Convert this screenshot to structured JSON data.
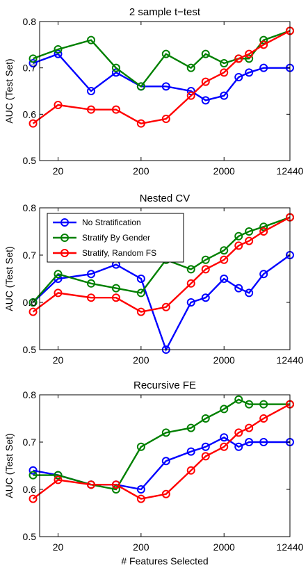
{
  "chart_data": [
    {
      "type": "line",
      "title": "2 sample t−test",
      "ylabel": "AUC (Test Set)",
      "xlabel": "",
      "ylim": [
        0.5,
        0.8
      ],
      "yticks": [
        0.5,
        0.6,
        0.7,
        0.8
      ],
      "xticks": [
        20,
        200,
        2000,
        12440
      ],
      "xscale": "log",
      "legend": null,
      "series": [
        {
          "color": "#0000ff",
          "x": [
            10,
            20,
            50,
            100,
            200,
            400,
            800,
            1200,
            2000,
            3000,
            4000,
            6000,
            12440
          ],
          "y": [
            0.71,
            0.73,
            0.65,
            0.69,
            0.66,
            0.66,
            0.65,
            0.63,
            0.64,
            0.68,
            0.69,
            0.7,
            0.7
          ]
        },
        {
          "color": "#008000",
          "x": [
            10,
            20,
            50,
            100,
            200,
            400,
            800,
            1200,
            2000,
            3000,
            4000,
            6000,
            12440
          ],
          "y": [
            0.72,
            0.74,
            0.76,
            0.7,
            0.66,
            0.73,
            0.7,
            0.73,
            0.71,
            0.72,
            0.72,
            0.76,
            0.78
          ]
        },
        {
          "color": "#ff0000",
          "x": [
            10,
            20,
            50,
            100,
            200,
            400,
            800,
            1200,
            2000,
            3000,
            4000,
            6000,
            12440
          ],
          "y": [
            0.58,
            0.62,
            0.61,
            0.61,
            0.58,
            0.59,
            0.64,
            0.67,
            0.69,
            0.72,
            0.73,
            0.75,
            0.78
          ]
        }
      ]
    },
    {
      "type": "line",
      "title": "Nested CV",
      "ylabel": "AUC (Test Set)",
      "xlabel": "",
      "ylim": [
        0.5,
        0.8
      ],
      "yticks": [
        0.5,
        0.6,
        0.7,
        0.8
      ],
      "xticks": [
        20,
        200,
        2000,
        12440
      ],
      "xscale": "log",
      "legend": "top-left",
      "series": [
        {
          "name": "No Stratification",
          "color": "#0000ff",
          "x": [
            10,
            20,
            50,
            100,
            200,
            400,
            800,
            1200,
            2000,
            3000,
            4000,
            6000,
            12440
          ],
          "y": [
            0.6,
            0.65,
            0.66,
            0.68,
            0.65,
            0.5,
            0.6,
            0.61,
            0.65,
            0.63,
            0.62,
            0.66,
            0.7
          ]
        },
        {
          "name": "Stratify By Gender",
          "color": "#008000",
          "x": [
            10,
            20,
            50,
            100,
            200,
            400,
            800,
            1200,
            2000,
            3000,
            4000,
            6000,
            12440
          ],
          "y": [
            0.6,
            0.66,
            0.64,
            0.63,
            0.62,
            0.69,
            0.67,
            0.69,
            0.71,
            0.74,
            0.75,
            0.76,
            0.78
          ]
        },
        {
          "name": "Stratify, Random FS",
          "color": "#ff0000",
          "x": [
            10,
            20,
            50,
            100,
            200,
            400,
            800,
            1200,
            2000,
            3000,
            4000,
            6000,
            12440
          ],
          "y": [
            0.58,
            0.62,
            0.61,
            0.61,
            0.58,
            0.59,
            0.64,
            0.67,
            0.69,
            0.72,
            0.73,
            0.75,
            0.78
          ]
        }
      ]
    },
    {
      "type": "line",
      "title": "Recursive FE",
      "ylabel": "AUC (Test Set)",
      "xlabel": "# Features Selected",
      "ylim": [
        0.5,
        0.8
      ],
      "yticks": [
        0.5,
        0.6,
        0.7,
        0.8
      ],
      "xticks": [
        20,
        200,
        2000,
        12440
      ],
      "xscale": "log",
      "legend": null,
      "series": [
        {
          "color": "#0000ff",
          "x": [
            10,
            20,
            50,
            100,
            200,
            400,
            800,
            1200,
            2000,
            3000,
            4000,
            6000,
            12440
          ],
          "y": [
            0.64,
            0.63,
            0.61,
            0.61,
            0.6,
            0.66,
            0.68,
            0.69,
            0.71,
            0.69,
            0.7,
            0.7,
            0.7
          ]
        },
        {
          "color": "#008000",
          "x": [
            10,
            20,
            50,
            100,
            200,
            400,
            800,
            1200,
            2000,
            3000,
            4000,
            6000,
            12440
          ],
          "y": [
            0.63,
            0.63,
            0.61,
            0.6,
            0.69,
            0.72,
            0.73,
            0.75,
            0.77,
            0.79,
            0.78,
            0.78,
            0.78
          ]
        },
        {
          "color": "#ff0000",
          "x": [
            10,
            20,
            50,
            100,
            200,
            400,
            800,
            1200,
            2000,
            3000,
            4000,
            6000,
            12440
          ],
          "y": [
            0.58,
            0.62,
            0.61,
            0.61,
            0.58,
            0.59,
            0.64,
            0.67,
            0.69,
            0.72,
            0.73,
            0.75,
            0.78
          ]
        }
      ]
    }
  ]
}
